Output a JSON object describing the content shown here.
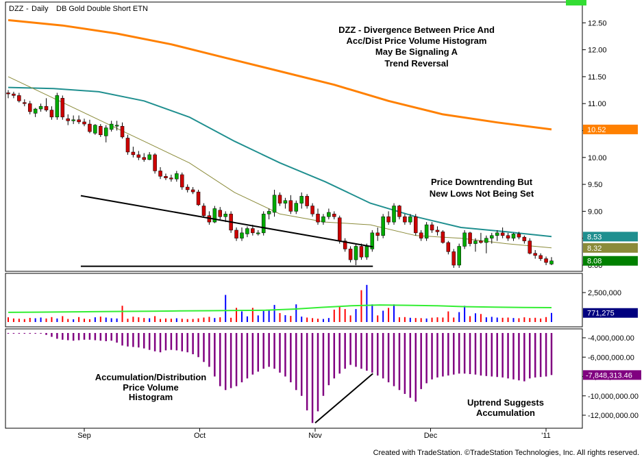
{
  "header": {
    "symbol": "DZZ",
    "period": "Daily",
    "name": "DB Gold Double Short ETN"
  },
  "footer": "Created with TradeStation. ©TradeStation Technologies, Inc. All rights reserved.",
  "annotations": {
    "title": [
      "DZZ - Divergence Between Price And",
      "Acc/Dist Price Volume Histogram",
      "May Be Signaling A",
      "Trend Reversal"
    ],
    "price_note": [
      "Price Downtrending But",
      "New Lows Not Being Set"
    ],
    "hist_note": [
      "Accumulation/Distribution",
      "Price Volume",
      "Histogram"
    ],
    "uptrend_note": [
      "Uptrend Suggests",
      "Accumulation"
    ]
  },
  "colors": {
    "up": "#00aa00",
    "down": "#cc0000",
    "ma_slow": "#ff8000",
    "ma_mid": "#1f8f8f",
    "ma_fast": "#8b8b3a",
    "vol_avg": "#33ee33",
    "hist": "#800080",
    "last_price": "#008000",
    "vol_badge": "#00007f"
  },
  "chart_data": [
    {
      "type": "candlestick",
      "x_labels": [
        "Sep",
        "Oct",
        "Nov",
        "Dec",
        "'11"
      ],
      "ylim": [
        7.9,
        12.6
      ],
      "y_ticks": [
        "12.50",
        "12.00",
        "11.50",
        "11.00",
        "10.50",
        "10.00",
        "9.50",
        "9.00",
        "8.50",
        "8.00"
      ],
      "ohlc": [
        [
          11.2,
          11.25,
          11.1,
          11.18
        ],
        [
          11.18,
          11.22,
          11.1,
          11.15
        ],
        [
          11.15,
          11.2,
          11.02,
          11.05
        ],
        [
          11.02,
          11.08,
          10.95,
          11.0
        ],
        [
          11.0,
          11.05,
          10.8,
          10.85
        ],
        [
          10.82,
          10.92,
          10.75,
          10.9
        ],
        [
          10.9,
          11.0,
          10.85,
          10.95
        ],
        [
          10.95,
          11.1,
          10.85,
          10.88
        ],
        [
          10.88,
          10.95,
          10.7,
          10.75
        ],
        [
          10.75,
          11.2,
          10.7,
          11.15
        ],
        [
          11.1,
          11.15,
          10.7,
          10.75
        ],
        [
          10.72,
          10.8,
          10.6,
          10.68
        ],
        [
          10.68,
          10.78,
          10.62,
          10.7
        ],
        [
          10.7,
          10.78,
          10.62,
          10.66
        ],
        [
          10.66,
          10.72,
          10.58,
          10.62
        ],
        [
          10.62,
          10.7,
          10.45,
          10.48
        ],
        [
          10.45,
          10.62,
          10.42,
          10.6
        ],
        [
          10.58,
          10.62,
          10.38,
          10.42
        ],
        [
          10.4,
          10.6,
          10.28,
          10.55
        ],
        [
          10.52,
          10.68,
          10.48,
          10.62
        ],
        [
          10.6,
          10.68,
          10.5,
          10.6
        ],
        [
          10.58,
          10.65,
          10.35,
          10.38
        ],
        [
          10.36,
          10.42,
          10.05,
          10.1
        ],
        [
          10.1,
          10.2,
          10.0,
          10.05
        ],
        [
          10.05,
          10.12,
          9.95,
          10.0
        ],
        [
          10.0,
          10.08,
          9.92,
          9.96
        ],
        [
          9.96,
          10.1,
          9.95,
          10.05
        ],
        [
          10.05,
          10.08,
          9.7,
          9.75
        ],
        [
          9.75,
          9.82,
          9.6,
          9.65
        ],
        [
          9.65,
          9.7,
          9.58,
          9.62
        ],
        [
          9.62,
          9.68,
          9.55,
          9.6
        ],
        [
          9.6,
          9.75,
          9.55,
          9.7
        ],
        [
          9.68,
          9.72,
          9.4,
          9.45
        ],
        [
          9.45,
          9.5,
          9.35,
          9.4
        ],
        [
          9.4,
          9.45,
          9.32,
          9.36
        ],
        [
          9.36,
          9.4,
          9.1,
          9.12
        ],
        [
          9.1,
          9.15,
          8.9,
          8.92
        ],
        [
          8.92,
          9.0,
          8.75,
          8.8
        ],
        [
          8.8,
          9.1,
          8.78,
          9.05
        ],
        [
          9.02,
          9.08,
          8.85,
          8.9
        ],
        [
          8.9,
          9.0,
          8.8,
          8.95
        ],
        [
          8.95,
          9.0,
          8.6,
          8.65
        ],
        [
          8.65,
          8.7,
          8.45,
          8.5
        ],
        [
          8.5,
          8.7,
          8.45,
          8.6
        ],
        [
          8.58,
          8.72,
          8.52,
          8.68
        ],
        [
          8.68,
          8.75,
          8.55,
          8.6
        ],
        [
          8.6,
          8.65,
          8.55,
          8.6
        ],
        [
          8.6,
          9.0,
          8.55,
          8.95
        ],
        [
          8.95,
          9.05,
          8.85,
          9.0
        ],
        [
          8.98,
          9.4,
          8.9,
          9.3
        ],
        [
          9.3,
          9.35,
          9.1,
          9.15
        ],
        [
          9.15,
          9.25,
          9.05,
          9.2
        ],
        [
          9.2,
          9.3,
          8.95,
          9.0
        ],
        [
          9.0,
          9.2,
          8.95,
          9.15
        ],
        [
          9.15,
          9.35,
          9.05,
          9.28
        ],
        [
          9.28,
          9.32,
          9.05,
          9.1
        ],
        [
          9.1,
          9.15,
          8.9,
          8.95
        ],
        [
          8.95,
          9.05,
          8.75,
          8.8
        ],
        [
          8.8,
          8.95,
          8.75,
          8.9
        ],
        [
          8.9,
          9.05,
          8.85,
          8.98
        ],
        [
          8.95,
          9.0,
          8.85,
          8.9
        ],
        [
          8.88,
          8.92,
          8.4,
          8.45
        ],
        [
          8.45,
          8.5,
          8.25,
          8.3
        ],
        [
          8.3,
          8.35,
          8.05,
          8.1
        ],
        [
          8.1,
          8.4,
          8.0,
          8.35
        ],
        [
          8.35,
          8.4,
          8.1,
          8.15
        ],
        [
          8.15,
          8.4,
          8.1,
          8.35
        ],
        [
          8.3,
          8.65,
          8.25,
          8.6
        ],
        [
          8.6,
          8.7,
          8.45,
          8.55
        ],
        [
          8.55,
          8.95,
          8.5,
          8.9
        ],
        [
          8.9,
          9.0,
          8.75,
          8.8
        ],
        [
          8.8,
          9.15,
          8.75,
          9.1
        ],
        [
          9.1,
          9.12,
          8.85,
          8.9
        ],
        [
          8.9,
          8.95,
          8.75,
          8.8
        ],
        [
          8.8,
          8.95,
          8.75,
          8.9
        ],
        [
          8.9,
          8.95,
          8.55,
          8.6
        ],
        [
          8.6,
          8.65,
          8.45,
          8.5
        ],
        [
          8.5,
          8.8,
          8.45,
          8.75
        ],
        [
          8.75,
          8.8,
          8.6,
          8.65
        ],
        [
          8.65,
          8.72,
          8.55,
          8.62
        ],
        [
          8.62,
          8.65,
          8.4,
          8.42
        ],
        [
          8.42,
          8.45,
          8.2,
          8.25
        ],
        [
          8.25,
          8.3,
          7.95,
          8.0
        ],
        [
          8.0,
          8.4,
          7.95,
          8.35
        ],
        [
          8.35,
          8.65,
          8.3,
          8.6
        ],
        [
          8.6,
          8.62,
          8.35,
          8.4
        ],
        [
          8.4,
          8.5,
          8.25,
          8.45
        ],
        [
          8.45,
          8.6,
          8.4,
          8.42
        ],
        [
          8.42,
          8.55,
          8.22,
          8.5
        ],
        [
          8.5,
          8.6,
          8.4,
          8.55
        ],
        [
          8.55,
          8.65,
          8.45,
          8.6
        ],
        [
          8.6,
          8.7,
          8.5,
          8.55
        ],
        [
          8.55,
          8.6,
          8.45,
          8.5
        ],
        [
          8.5,
          8.6,
          8.45,
          8.58
        ],
        [
          8.58,
          8.62,
          8.48,
          8.52
        ],
        [
          8.52,
          8.55,
          8.4,
          8.45
        ],
        [
          8.45,
          8.5,
          8.2,
          8.22
        ],
        [
          8.22,
          8.28,
          8.12,
          8.18
        ],
        [
          8.18,
          8.22,
          8.08,
          8.12
        ],
        [
          8.12,
          8.16,
          8.0,
          8.05
        ],
        [
          8.02,
          8.15,
          8.0,
          8.08
        ]
      ],
      "series": [
        {
          "name": "",
          "values": [
            12.55,
            12.45,
            12.3,
            12.1,
            11.85,
            11.6,
            11.35,
            11.05,
            10.8,
            10.65,
            10.52
          ]
        },
        {
          "name": "",
          "values": [
            11.3,
            11.28,
            11.22,
            11.05,
            10.75,
            10.3,
            9.9,
            9.55,
            9.15,
            8.9,
            8.7,
            8.62,
            8.53
          ]
        },
        {
          "name": "",
          "values": [
            11.5,
            11.1,
            10.7,
            10.3,
            9.9,
            9.35,
            8.95,
            8.8,
            8.75,
            8.55,
            8.5,
            8.4,
            8.32
          ]
        }
      ],
      "trendlines": [
        {
          "from": [
            8.97,
            9.29
          ],
          "to": [
            11.5,
            8.34
          ]
        },
        {
          "from": [
            8.97,
            7.98
          ],
          "to": [
            11.5,
            7.98
          ]
        }
      ],
      "last_values": [
        "10.52",
        "8.53",
        "8.32",
        "8.08"
      ]
    },
    {
      "type": "bar",
      "title": "",
      "ylim": [
        0,
        4000000
      ],
      "y_ticks": [
        "2,500,000"
      ],
      "values": [
        400000,
        300000,
        280000,
        250000,
        350000,
        320000,
        380000,
        300000,
        420000,
        300000,
        500000,
        260000,
        230000,
        420000,
        280000,
        240000,
        400000,
        460000,
        380000,
        320000,
        300000,
        1380000,
        280000,
        450000,
        400000,
        340000,
        320000,
        500000,
        260000,
        300000,
        280000,
        320000,
        280000,
        250000,
        260000,
        310000,
        380000,
        440000,
        340000,
        400000,
        2300000,
        360000,
        1200000,
        900000,
        480000,
        1200000,
        560000,
        940000,
        1000000,
        1450000,
        760000,
        580000,
        520000,
        1500000,
        460000,
        380000,
        330000,
        280000,
        260000,
        340000,
        1050000,
        1300000,
        1100000,
        560000,
        1100000,
        2700000,
        3150000,
        1500000,
        560000,
        960000,
        1200000,
        1500000,
        400000,
        420000,
        360000,
        340000,
        330000,
        300000,
        370000,
        400000,
        380000,
        900000,
        380000,
        840000,
        1380000,
        500000,
        740000,
        680000,
        400000,
        440000,
        380000,
        360000,
        380000,
        340000,
        320000,
        400000,
        340000,
        360000,
        300000,
        420000,
        771275
      ],
      "series": [
        {
          "name": "",
          "values": [
            820000,
            840000,
            860000,
            880000,
            900000,
            920000,
            940000,
            960000,
            980000,
            1000000,
            1100000,
            1250000,
            1380000,
            1450000,
            1420000,
            1380000,
            1300000,
            1260000,
            1240000,
            1220000
          ]
        }
      ],
      "last_values": [
        "771,275"
      ]
    },
    {
      "type": "bar",
      "ylim": [
        -13000000,
        -3000000
      ],
      "y_ticks": [
        "-4,000,000.00",
        "-6,000,000.00",
        "-8,000,000.00",
        "-10,000,000.00",
        "-12,000,000.00"
      ],
      "values": [
        -3250000,
        -3280000,
        -3300000,
        -3350000,
        -3400000,
        -3450000,
        -3500000,
        -3700000,
        -3900000,
        -4100000,
        -4200000,
        -4250000,
        -4300000,
        -4250000,
        -4200000,
        -4200000,
        -4250000,
        -4300000,
        -4350000,
        -4300000,
        -4500000,
        -4800000,
        -4900000,
        -4950000,
        -5000000,
        -5100000,
        -5250000,
        -5400000,
        -5500000,
        -5300000,
        -5250000,
        -5300000,
        -5400000,
        -5500000,
        -5700000,
        -6000000,
        -6500000,
        -7000000,
        -8000000,
        -9000000,
        -9400000,
        -9200000,
        -9000000,
        -8600000,
        -8200000,
        -7800000,
        -7500000,
        -7200000,
        -7000000,
        -7200000,
        -7600000,
        -8000000,
        -8600000,
        -9400000,
        -10000000,
        -11500000,
        -12800000,
        -11600000,
        -10000000,
        -8900000,
        -8200000,
        -7700000,
        -7200000,
        -6800000,
        -7000000,
        -7200000,
        -7400000,
        -7600000,
        -7900000,
        -8200000,
        -8600000,
        -9000000,
        -9400000,
        -9800000,
        -10200000,
        -10600000,
        -9300000,
        -8700000,
        -8300000,
        -8100000,
        -8000000,
        -7900000,
        -7800000,
        -7700000,
        -7700000,
        -7750000,
        -7800000,
        -7900000,
        -7950000,
        -8000000,
        -8050000,
        -8100000,
        -8200000,
        -8300000,
        -8400000,
        -8500000,
        -8200000,
        -8100000,
        -8050000,
        -8000000,
        -7848313.46
      ],
      "trendlines": [
        {
          "from": [
            11.0,
            -12800000
          ],
          "to": [
            11.5,
            -7700000
          ]
        }
      ],
      "last_values": [
        "-7,848,313.46"
      ]
    }
  ]
}
